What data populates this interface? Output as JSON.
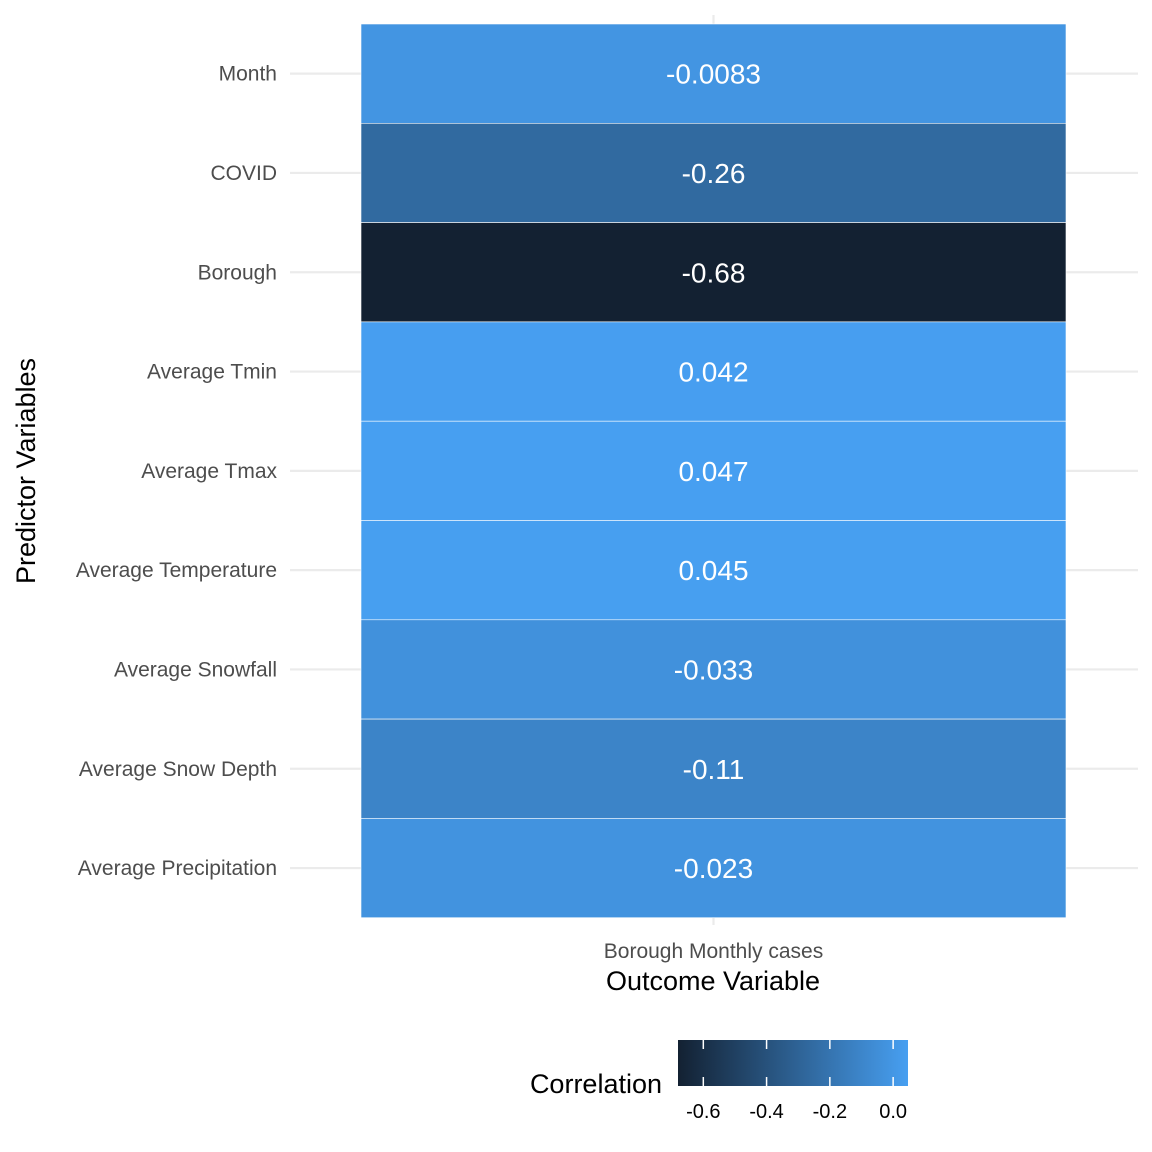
{
  "chart_data": {
    "type": "heatmap",
    "xlabel": "Outcome Variable",
    "ylabel": "Predictor Variables",
    "x_categories": [
      "Borough Monthly cases"
    ],
    "y_categories": [
      "Month",
      "COVID",
      "Borough",
      "Average Tmin",
      "Average Tmax",
      "Average Temperature",
      "Average Snowfall",
      "Average Snow Depth",
      "Average Precipitation"
    ],
    "cells": [
      {
        "x": "Borough Monthly cases",
        "y": "Month",
        "value": -0.0083,
        "label": "-0.0083"
      },
      {
        "x": "Borough Monthly cases",
        "y": "COVID",
        "value": -0.26,
        "label": "-0.26"
      },
      {
        "x": "Borough Monthly cases",
        "y": "Borough",
        "value": -0.68,
        "label": "-0.68"
      },
      {
        "x": "Borough Monthly cases",
        "y": "Average Tmin",
        "value": 0.042,
        "label": "0.042"
      },
      {
        "x": "Borough Monthly cases",
        "y": "Average Tmax",
        "value": 0.047,
        "label": "0.047"
      },
      {
        "x": "Borough Monthly cases",
        "y": "Average Temperature",
        "value": 0.045,
        "label": "0.045"
      },
      {
        "x": "Borough Monthly cases",
        "y": "Average Snowfall",
        "value": -0.033,
        "label": "-0.033"
      },
      {
        "x": "Borough Monthly cases",
        "y": "Average Snow Depth",
        "value": -0.11,
        "label": "-0.11"
      },
      {
        "x": "Borough Monthly cases",
        "y": "Average Precipitation",
        "value": -0.023,
        "label": "-0.023"
      }
    ],
    "legend": {
      "title": "Correlation",
      "position": "bottom",
      "range": [
        -0.68,
        0.047
      ],
      "ticks": [
        -0.6,
        -0.4,
        -0.2,
        0.0
      ],
      "tick_labels": [
        "-0.6",
        "-0.4",
        "-0.2",
        "0.0"
      ],
      "low_color": "#132132",
      "high_color": "#479ff1"
    },
    "grid": true,
    "background": "#ffffff"
  }
}
